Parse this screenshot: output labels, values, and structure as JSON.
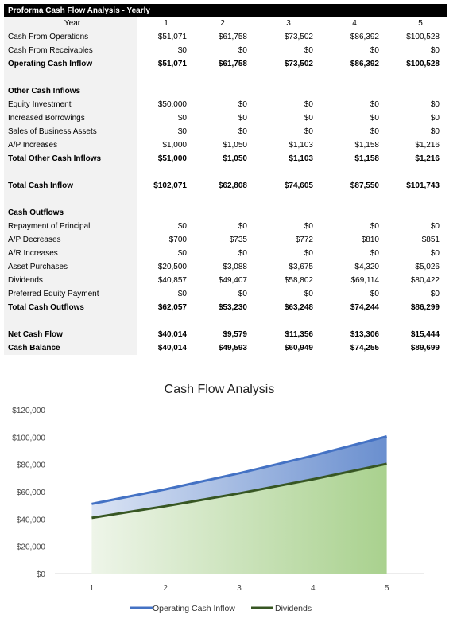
{
  "sheet": {
    "title": "Proforma Cash Flow Analysis - Yearly",
    "year_label": "Year",
    "years": [
      "1",
      "2",
      "3",
      "4",
      "5"
    ],
    "rows": [
      {
        "label": "Cash From Operations",
        "values": [
          "$51,071",
          "$61,758",
          "$73,502",
          "$86,392",
          "$100,528"
        ],
        "style": ""
      },
      {
        "label": "Cash From Receivables",
        "values": [
          "$0",
          "$0",
          "$0",
          "$0",
          "$0"
        ],
        "style": ""
      },
      {
        "label": "Operating Cash Inflow",
        "values": [
          "$51,071",
          "$61,758",
          "$73,502",
          "$86,392",
          "$100,528"
        ],
        "style": "bold"
      },
      {
        "label": "",
        "values": [
          "",
          "",
          "",
          "",
          ""
        ],
        "style": ""
      },
      {
        "label": "Other Cash Inflows",
        "values": [
          "",
          "",
          "",
          "",
          ""
        ],
        "style": "bold"
      },
      {
        "label": "Equity Investment",
        "values": [
          "$50,000",
          "$0",
          "$0",
          "$0",
          "$0"
        ],
        "style": ""
      },
      {
        "label": "Increased Borrowings",
        "values": [
          "$0",
          "$0",
          "$0",
          "$0",
          "$0"
        ],
        "style": ""
      },
      {
        "label": "Sales of Business Assets",
        "values": [
          "$0",
          "$0",
          "$0",
          "$0",
          "$0"
        ],
        "style": ""
      },
      {
        "label": "A/P Increases",
        "values": [
          "$1,000",
          "$1,050",
          "$1,103",
          "$1,158",
          "$1,216"
        ],
        "style": ""
      },
      {
        "label": "Total Other Cash Inflows",
        "values": [
          "$51,000",
          "$1,050",
          "$1,103",
          "$1,158",
          "$1,216"
        ],
        "style": "bold"
      },
      {
        "label": "",
        "values": [
          "",
          "",
          "",
          "",
          ""
        ],
        "style": ""
      },
      {
        "label": "Total Cash Inflow",
        "values": [
          "$102,071",
          "$62,808",
          "$74,605",
          "$87,550",
          "$101,743"
        ],
        "style": "bold"
      },
      {
        "label": "",
        "values": [
          "",
          "",
          "",
          "",
          ""
        ],
        "style": ""
      },
      {
        "label": "Cash Outflows",
        "values": [
          "",
          "",
          "",
          "",
          ""
        ],
        "style": "bold"
      },
      {
        "label": "Repayment of Principal",
        "values": [
          "$0",
          "$0",
          "$0",
          "$0",
          "$0"
        ],
        "style": ""
      },
      {
        "label": "A/P Decreases",
        "values": [
          "$700",
          "$735",
          "$772",
          "$810",
          "$851"
        ],
        "style": ""
      },
      {
        "label": "A/R Increases",
        "values": [
          "$0",
          "$0",
          "$0",
          "$0",
          "$0"
        ],
        "style": ""
      },
      {
        "label": "Asset Purchases",
        "values": [
          "$20,500",
          "$3,088",
          "$3,675",
          "$4,320",
          "$5,026"
        ],
        "style": ""
      },
      {
        "label": "Dividends",
        "values": [
          "$40,857",
          "$49,407",
          "$58,802",
          "$69,114",
          "$80,422"
        ],
        "style": ""
      },
      {
        "label": "Preferred Equity Payment",
        "values": [
          "$0",
          "$0",
          "$0",
          "$0",
          "$0"
        ],
        "style": ""
      },
      {
        "label": "Total Cash Outflows",
        "values": [
          "$62,057",
          "$53,230",
          "$63,248",
          "$74,244",
          "$86,299"
        ],
        "style": "bold"
      },
      {
        "label": "",
        "values": [
          "",
          "",
          "",
          "",
          ""
        ],
        "style": ""
      },
      {
        "label": "Net Cash Flow",
        "values": [
          "$40,014",
          "$9,579",
          "$11,356",
          "$13,306",
          "$15,444"
        ],
        "style": "bold"
      },
      {
        "label": "Cash Balance",
        "values": [
          "$40,014",
          "$49,593",
          "$60,949",
          "$74,255",
          "$89,699"
        ],
        "style": "bold"
      }
    ]
  },
  "chart_data": {
    "type": "area",
    "title": "Cash Flow Analysis",
    "x": [
      1,
      2,
      3,
      4,
      5
    ],
    "ylim": [
      0,
      120000
    ],
    "yticks": [
      0,
      20000,
      40000,
      60000,
      80000,
      100000,
      120000
    ],
    "ytick_labels": [
      "$0",
      "$20,000",
      "$40,000",
      "$60,000",
      "$80,000",
      "$100,000",
      "$120,000"
    ],
    "xtick_labels": [
      "1",
      "2",
      "3",
      "4",
      "5"
    ],
    "series": [
      {
        "name": "Operating Cash Inflow",
        "values": [
          51071,
          61758,
          73502,
          86392,
          100528
        ],
        "color": "#4472c4"
      },
      {
        "name": "Dividends",
        "values": [
          40857,
          49407,
          58802,
          69114,
          80422
        ],
        "color": "#375623"
      }
    ],
    "grid": false,
    "legend": "bottom"
  }
}
